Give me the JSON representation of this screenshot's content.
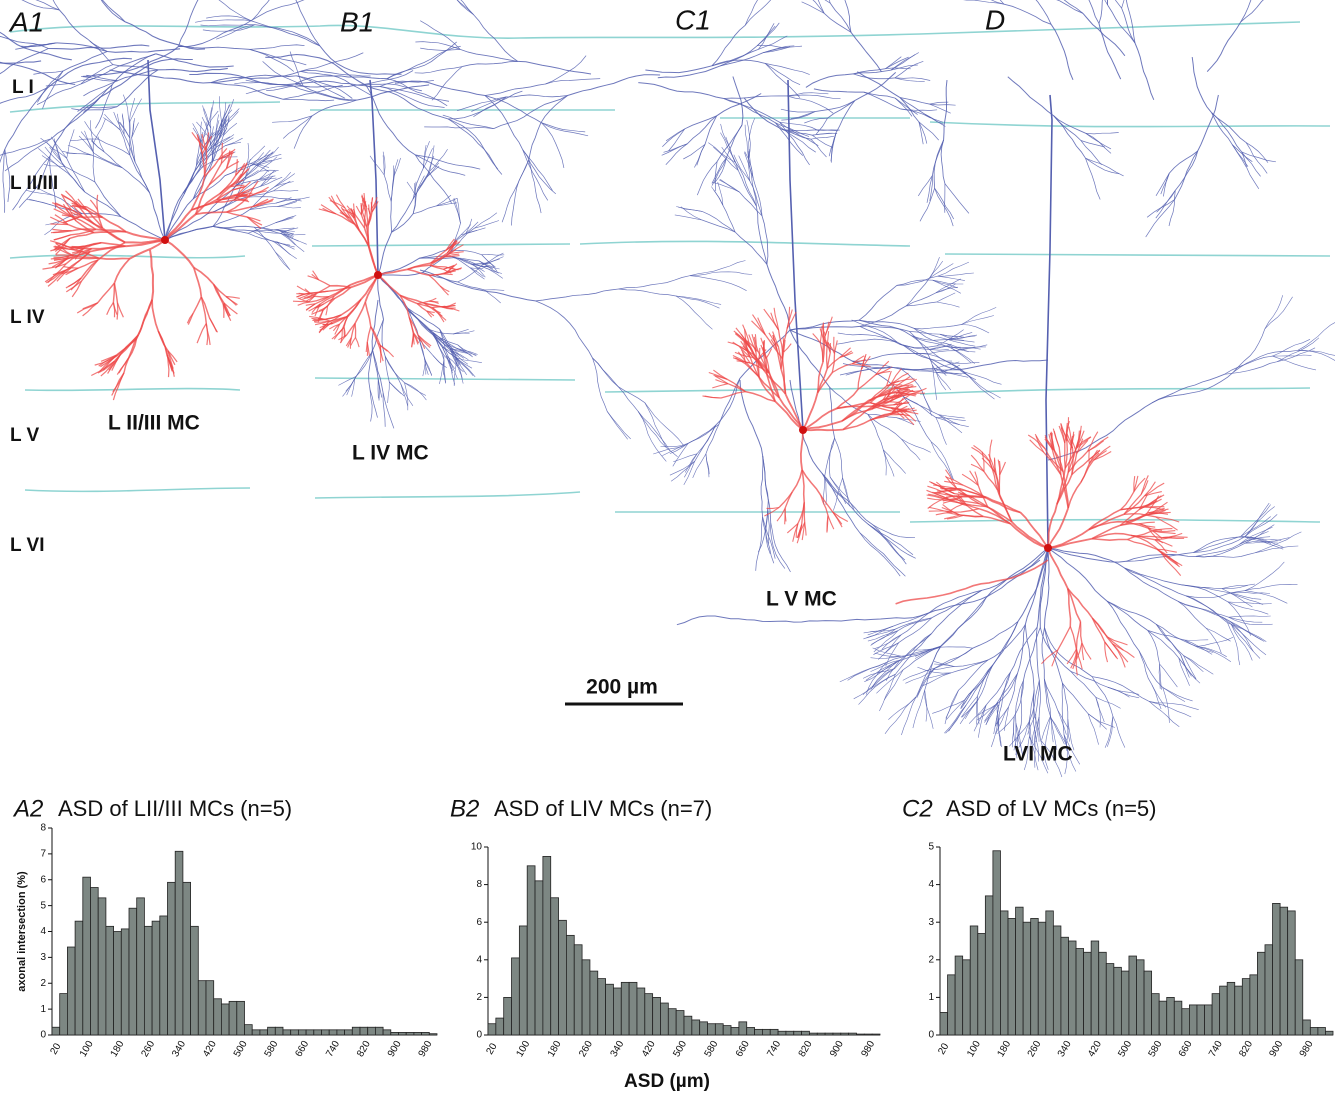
{
  "panel_labels": [
    "A1",
    "B1",
    "C1",
    "D"
  ],
  "layer_labels": [
    "L I",
    "L II/III",
    "L IV",
    "L V",
    "L VI"
  ],
  "cell_labels": [
    "L II/III MC",
    "L IV MC",
    "L V MC",
    "LVI MC"
  ],
  "scale_bar": "200 µm",
  "chart_data": [
    {
      "type": "bar",
      "panel": "A2",
      "title": "ASD of LII/III MCs (n=5)",
      "y_label": "axonal intersection (%)",
      "categories": [
        20,
        null,
        null,
        null,
        100,
        null,
        null,
        null,
        180,
        null,
        null,
        null,
        260,
        null,
        null,
        null,
        340,
        null,
        null,
        null,
        420,
        null,
        null,
        null,
        500,
        null,
        null,
        null,
        580,
        null,
        null,
        null,
        660,
        null,
        null,
        null,
        740,
        null,
        null,
        null,
        820,
        null,
        null,
        null,
        900,
        null,
        null,
        null,
        980,
        null
      ],
      "values": [
        0.3,
        1.6,
        3.4,
        4.4,
        6.1,
        5.7,
        5.3,
        4.2,
        4.0,
        4.1,
        4.9,
        5.3,
        4.2,
        4.4,
        4.6,
        5.9,
        7.1,
        5.9,
        4.2,
        2.1,
        2.1,
        1.4,
        1.2,
        1.3,
        1.3,
        0.4,
        0.2,
        0.2,
        0.3,
        0.3,
        0.2,
        0.2,
        0.2,
        0.2,
        0.2,
        0.2,
        0.2,
        0.2,
        0.2,
        0.3,
        0.3,
        0.3,
        0.3,
        0.2,
        0.1,
        0.1,
        0.1,
        0.1,
        0.1,
        0.05
      ],
      "color": "#7d8783",
      "ylim": [
        0,
        8
      ],
      "yticks": [
        0,
        1,
        2,
        3,
        4,
        5,
        6,
        7,
        8
      ]
    },
    {
      "type": "bar",
      "panel": "B2",
      "title": "ASD of LIV MCs (n=7)",
      "x_label": "ASD (µm)",
      "categories": [
        20,
        null,
        null,
        null,
        100,
        null,
        null,
        null,
        180,
        null,
        null,
        null,
        260,
        null,
        null,
        null,
        340,
        null,
        null,
        null,
        420,
        null,
        null,
        null,
        500,
        null,
        null,
        null,
        580,
        null,
        null,
        null,
        660,
        null,
        null,
        null,
        740,
        null,
        null,
        null,
        820,
        null,
        null,
        null,
        900,
        null,
        null,
        null,
        980,
        null
      ],
      "values": [
        0.6,
        0.9,
        2.0,
        4.1,
        5.8,
        9.0,
        8.2,
        9.5,
        7.3,
        6.1,
        5.3,
        4.8,
        4.0,
        3.4,
        3.0,
        2.7,
        2.5,
        2.8,
        2.8,
        2.5,
        2.2,
        2.0,
        1.7,
        1.4,
        1.3,
        1.0,
        0.8,
        0.7,
        0.6,
        0.6,
        0.5,
        0.4,
        0.7,
        0.4,
        0.3,
        0.3,
        0.3,
        0.2,
        0.2,
        0.2,
        0.2,
        0.1,
        0.1,
        0.1,
        0.1,
        0.1,
        0.1,
        0.05,
        0.05,
        0.05
      ],
      "color": "#7d8783",
      "ylim": [
        0,
        10
      ],
      "yticks": [
        0,
        2,
        4,
        6,
        8,
        10
      ]
    },
    {
      "type": "bar",
      "panel": "C2",
      "title": "ASD of LV MCs (n=5)",
      "categories": [
        20,
        null,
        null,
        null,
        100,
        null,
        null,
        null,
        180,
        null,
        null,
        null,
        260,
        null,
        null,
        null,
        340,
        null,
        null,
        null,
        420,
        null,
        null,
        null,
        500,
        null,
        null,
        null,
        580,
        null,
        null,
        null,
        660,
        null,
        null,
        null,
        740,
        null,
        null,
        null,
        820,
        null,
        null,
        null,
        900,
        null,
        null,
        null,
        980,
        null,
        null,
        null
      ],
      "values": [
        0.6,
        1.6,
        2.1,
        2.0,
        2.9,
        2.7,
        3.7,
        4.9,
        3.3,
        3.1,
        3.4,
        3.0,
        3.1,
        3.0,
        3.3,
        2.9,
        2.6,
        2.5,
        2.3,
        2.2,
        2.5,
        2.2,
        1.9,
        1.8,
        1.7,
        2.1,
        2.0,
        1.7,
        1.1,
        0.9,
        1.0,
        0.9,
        0.7,
        0.8,
        0.8,
        0.8,
        1.1,
        1.3,
        1.4,
        1.3,
        1.5,
        1.6,
        2.2,
        2.4,
        3.5,
        3.4,
        3.3,
        2.0,
        0.4,
        0.2,
        0.2,
        0.1
      ],
      "color": "#7d8783",
      "ylim": [
        0,
        5
      ],
      "yticks": [
        0,
        1,
        2,
        3,
        4,
        5
      ]
    }
  ]
}
